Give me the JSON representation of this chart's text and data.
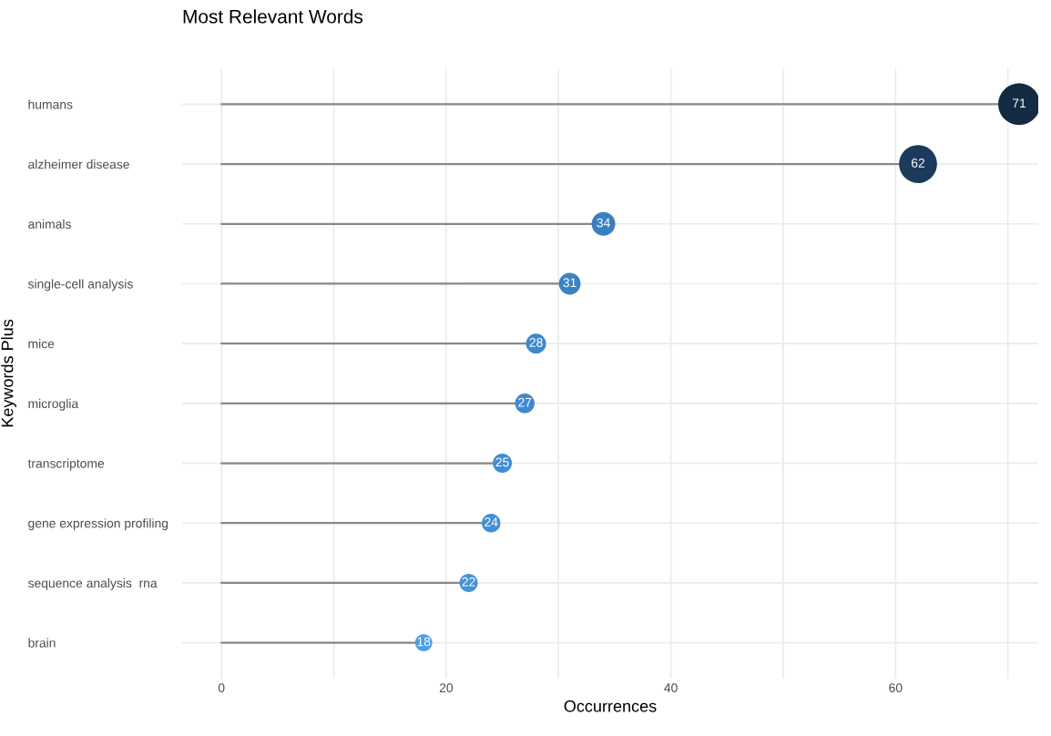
{
  "chart_data": {
    "type": "lollipop",
    "title": "Most Relevant Words",
    "xlabel": "Occurrences",
    "ylabel": "Keywords Plus",
    "orientation": "horizontal",
    "categories": [
      "humans",
      "alzheimer disease",
      "animals",
      "single-cell analysis",
      "mice",
      "microglia",
      "transcriptome",
      "gene expression profiling",
      "sequence analysis  rna",
      "brain"
    ],
    "values": [
      71,
      62,
      34,
      31,
      28,
      27,
      25,
      24,
      22,
      18
    ],
    "colors": [
      "#132b43",
      "#1b3a5c",
      "#3a7fbf",
      "#3c82c3",
      "#3f88cc",
      "#4089cd",
      "#428dd3",
      "#438fd5",
      "#4593d9",
      "#4c9fe8"
    ],
    "sizes": [
      1,
      0.83,
      0.32,
      0.27,
      0.23,
      0.22,
      0.21,
      0.2,
      0.19,
      0.17
    ],
    "data_labels": true,
    "xlim": [
      -3.5,
      72.7
    ],
    "xticks": [
      0,
      {
        "value": 10,
        "label": null
      },
      20,
      {
        "value": 30,
        "label": null
      },
      40,
      {
        "value": 50,
        "label": null
      },
      60,
      {
        "value": 70,
        "label": null
      }
    ],
    "grid": true,
    "legend": false
  }
}
